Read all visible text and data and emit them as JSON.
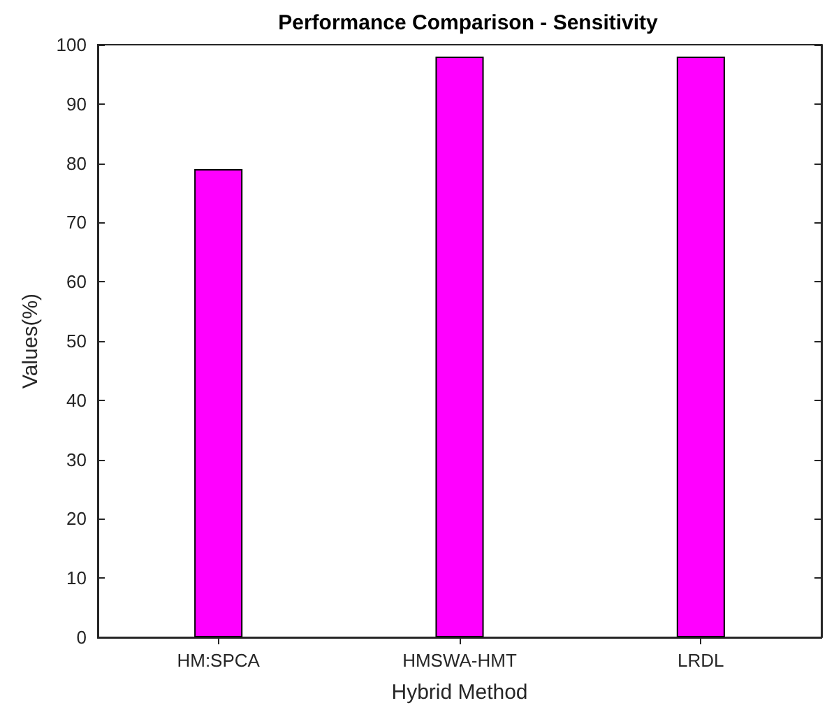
{
  "chart_data": {
    "type": "bar",
    "title": "Performance Comparison - Sensitivity",
    "xlabel": "Hybrid Method",
    "ylabel": "Values(%)",
    "categories": [
      "HM:SPCA",
      "HMSWA-HMT",
      "LRDL"
    ],
    "series": [
      {
        "color": "#ff00ff",
        "values": [
          79,
          98,
          98
        ]
      }
    ],
    "ylim": [
      0,
      100
    ],
    "yticks": [
      0,
      10,
      20,
      30,
      40,
      50,
      60,
      70,
      80,
      90,
      100
    ]
  }
}
